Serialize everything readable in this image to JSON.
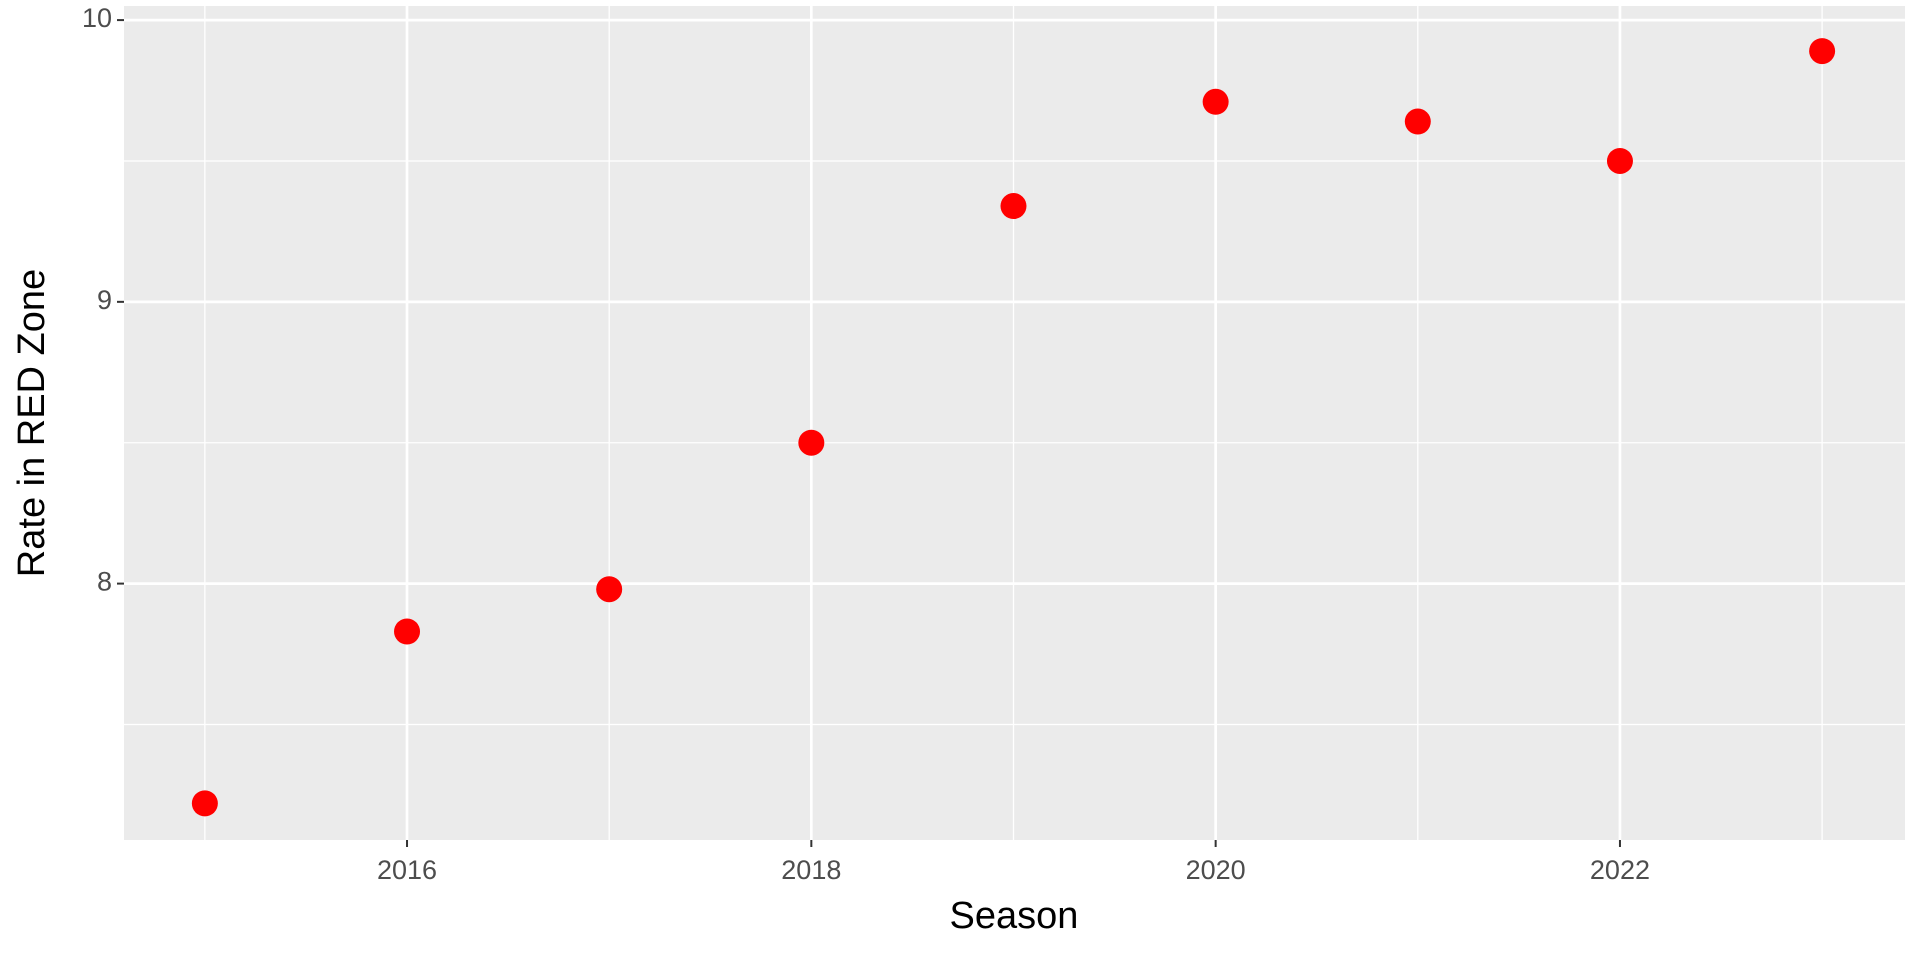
{
  "chart_data": {
    "type": "scatter",
    "x_label": "Season",
    "y_label": "Rate in RED Zone",
    "x": [
      2015,
      2016,
      2017,
      2018,
      2019,
      2020,
      2021,
      2022,
      2023
    ],
    "series": [
      {
        "color": "#ff0000",
        "values": [
          7.22,
          7.83,
          7.98,
          8.5,
          9.34,
          9.71,
          9.64,
          9.5,
          9.89
        ]
      }
    ],
    "xlim": [
      2014.6,
      2023.41
    ],
    "ylim": [
      7.09,
      10.05
    ],
    "xticks": [
      2016,
      2018,
      2020,
      2022
    ],
    "yticks": [
      8,
      9,
      10
    ],
    "x_minor_ticks": [
      2015,
      2017,
      2019,
      2021,
      2023
    ],
    "y_minor_ticks": [
      7.5,
      8.5,
      9.5
    ],
    "grid": true,
    "panel_color": "#ebebeb"
  }
}
